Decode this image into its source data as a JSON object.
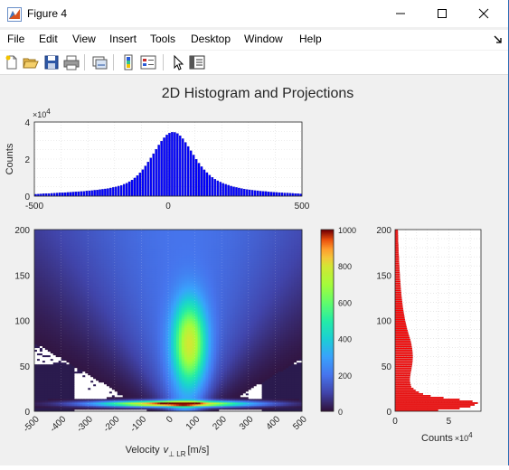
{
  "window": {
    "title": "Figure 4"
  },
  "menu": [
    "File",
    "Edit",
    "View",
    "Insert",
    "Tools",
    "Desktop",
    "Window",
    "Help"
  ],
  "toolbar": {
    "buttons": [
      "new-figure-icon",
      "open-file-icon",
      "save-icon",
      "print-icon",
      "link-plot-icon",
      "colorbar-icon",
      "legend-icon",
      "pointer-icon",
      "property-inspector-icon"
    ]
  },
  "figure": {
    "title": "2D Histogram and Projections"
  },
  "chart_data": [
    {
      "type": "bar",
      "subplot": "top projection",
      "xlim": [
        -500,
        500
      ],
      "ylim": [
        0,
        40000
      ],
      "xticks": [
        "-500",
        "0",
        "500"
      ],
      "yticks": [
        "0",
        "2",
        "4"
      ],
      "ylabel": "Counts",
      "exponent": "×10",
      "exponent_power": "4",
      "color": "#0000ff",
      "x": [
        -495,
        -485,
        -475,
        -465,
        -455,
        -445,
        -435,
        -425,
        -415,
        -405,
        -395,
        -385,
        -375,
        -365,
        -355,
        -345,
        -335,
        -325,
        -315,
        -305,
        -295,
        -285,
        -275,
        -265,
        -255,
        -245,
        -235,
        -225,
        -215,
        -205,
        -195,
        -185,
        -175,
        -165,
        -155,
        -145,
        -135,
        -125,
        -115,
        -105,
        -95,
        -85,
        -75,
        -65,
        -55,
        -45,
        -35,
        -25,
        -15,
        -5,
        5,
        15,
        25,
        35,
        45,
        55,
        65,
        75,
        85,
        95,
        105,
        115,
        125,
        135,
        145,
        155,
        165,
        175,
        185,
        195,
        205,
        215,
        225,
        235,
        245,
        255,
        265,
        275,
        285,
        295,
        305,
        315,
        325,
        335,
        345,
        355,
        365,
        375,
        385,
        395,
        405,
        415,
        425,
        435,
        445,
        455,
        465,
        475,
        485,
        495
      ],
      "values": [
        1000,
        1100,
        1200,
        1300,
        1400,
        1400,
        1500,
        1600,
        1700,
        1800,
        1800,
        1900,
        2000,
        2100,
        2200,
        2300,
        2400,
        2500,
        2600,
        2800,
        2900,
        3000,
        3200,
        3300,
        3500,
        3700,
        3900,
        4100,
        4400,
        4700,
        5000,
        5400,
        5800,
        6400,
        7000,
        7800,
        8700,
        9800,
        11100,
        12600,
        14300,
        16300,
        18400,
        20600,
        22900,
        25300,
        27600,
        29700,
        31500,
        33000,
        34000,
        34500,
        34400,
        33800,
        32600,
        31000,
        29000,
        26800,
        24500,
        22200,
        19900,
        17800,
        15900,
        14200,
        12700,
        11300,
        10100,
        9100,
        8300,
        7600,
        6900,
        6400,
        5900,
        5400,
        5000,
        4700,
        4400,
        4100,
        3800,
        3600,
        3400,
        3200,
        3000,
        2900,
        2700,
        2600,
        2500,
        2300,
        2200,
        2100,
        2000,
        1900,
        1800,
        1700,
        1700,
        1600,
        1500,
        1400,
        1300,
        1200
      ]
    },
    {
      "type": "heatmap",
      "subplot": "2D histogram",
      "xlim": [
        -500,
        500
      ],
      "ylim": [
        0,
        200
      ],
      "xticks": [
        "-500",
        "-400",
        "-300",
        "-200",
        "-100",
        "0",
        "100",
        "200",
        "300",
        "400",
        "500"
      ],
      "yticks": [
        "0",
        "50",
        "100",
        "150",
        "200"
      ],
      "xlabel": "Velocity",
      "xlabel_symbol": "v",
      "xlabel_sub": "⊥ LR",
      "xlabel_unit": "[m/s]",
      "colormap": "turbo",
      "clim": [
        0,
        1000
      ],
      "cticks": [
        "0",
        "200",
        "400",
        "600",
        "800",
        "1000"
      ],
      "features": {
        "bright_band_y_range": [
          5,
          12
        ],
        "bright_band_peak_counts": 1000,
        "central_blob_center": [
          80,
          75
        ],
        "central_blob_peak_counts": 620
      }
    },
    {
      "type": "bar",
      "subplot": "right projection",
      "orientation": "horizontal",
      "xlim": [
        0,
        80000
      ],
      "ylim": [
        0,
        200
      ],
      "xticks": [
        "0",
        "5"
      ],
      "yticks": [
        "0",
        "50",
        "100",
        "150",
        "200"
      ],
      "xlabel": "Counts",
      "exponent": "×10",
      "exponent_power": "4",
      "color": "#ff0000",
      "y": [
        1,
        3,
        5,
        7,
        9,
        11,
        13,
        15,
        17,
        19,
        21,
        23,
        25,
        27,
        29,
        31,
        33,
        35,
        37,
        39,
        41,
        43,
        45,
        47,
        49,
        51,
        53,
        55,
        57,
        59,
        61,
        63,
        65,
        67,
        69,
        71,
        73,
        75,
        77,
        79,
        81,
        83,
        85,
        87,
        89,
        91,
        93,
        95,
        97,
        99,
        101,
        103,
        105,
        107,
        109,
        111,
        113,
        115,
        117,
        119,
        121,
        123,
        125,
        127,
        129,
        131,
        133,
        135,
        137,
        139,
        141,
        143,
        145,
        147,
        149,
        151,
        153,
        155,
        157,
        159,
        161,
        163,
        165,
        167,
        169,
        171,
        173,
        175,
        177,
        179,
        181,
        183,
        185,
        187,
        189,
        191,
        193,
        195,
        197,
        199
      ],
      "values": [
        40000,
        60000,
        70000,
        74000,
        77000,
        72000,
        60000,
        45000,
        33000,
        26000,
        22000,
        19000,
        17000,
        15000,
        14500,
        14000,
        13800,
        13700,
        13800,
        14000,
        14300,
        14600,
        15000,
        15200,
        15500,
        15800,
        16000,
        16200,
        16300,
        16400,
        16400,
        16300,
        16200,
        16000,
        15800,
        15500,
        15200,
        14900,
        14500,
        14000,
        13500,
        13000,
        12500,
        12000,
        11500,
        11000,
        10600,
        10200,
        9800,
        9400,
        9100,
        8800,
        8500,
        8200,
        7900,
        7600,
        7400,
        7100,
        6900,
        6700,
        6500,
        6300,
        6100,
        5900,
        5700,
        5600,
        5400,
        5300,
        5100,
        5000,
        4900,
        4800,
        4600,
        4500,
        4400,
        4300,
        4200,
        4100,
        4000,
        3900,
        3800,
        3700,
        3600,
        3500,
        3500,
        3400,
        3300,
        3200,
        3200,
        3100,
        3000,
        3000,
        2900,
        2800,
        2800,
        2700,
        2700,
        2600,
        2600,
        2500
      ]
    }
  ]
}
